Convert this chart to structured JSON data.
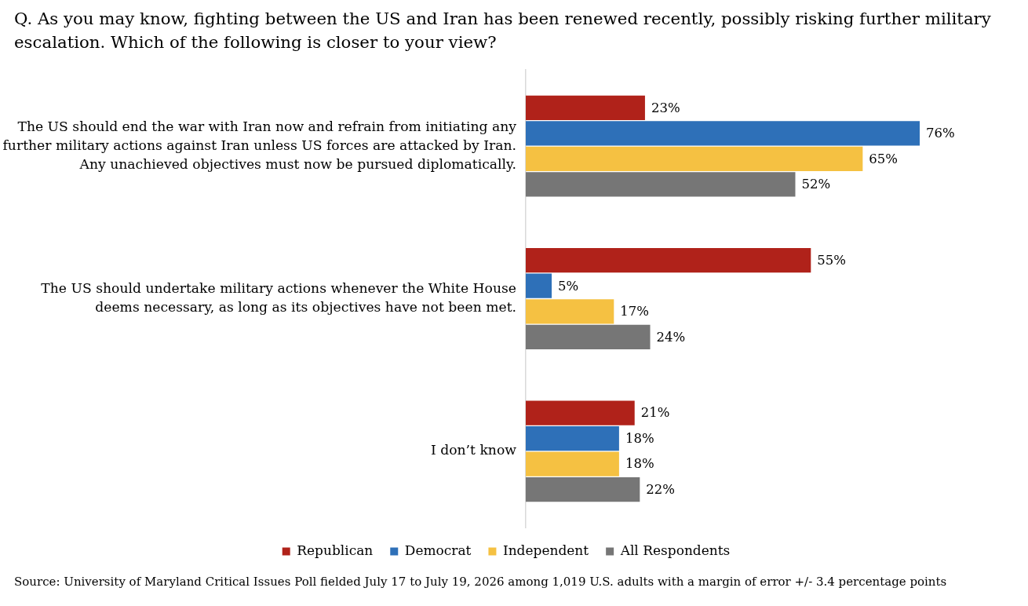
{
  "chart_data": {
    "type": "bar",
    "orientation": "horizontal",
    "title": "Q. As you may know, fighting between the US and Iran has been renewed recently, possibly risking further military escalation. Which of the following is closer to your view?",
    "categories": [
      "The US should end the war with Iran now and refrain from initiating any further military actions against Iran unless US forces are attacked by Iran. Any unachieved objectives must now be pursued diplomatically.",
      "The US should undertake military actions whenever the White House deems necessary, as long as its objectives have not been met.",
      "I don’t know"
    ],
    "series": [
      {
        "name": "Republican",
        "color": "#b0221a",
        "values": [
          23,
          55,
          21
        ],
        "value_labels": [
          "23%",
          "55%",
          "21%"
        ]
      },
      {
        "name": "Democrat",
        "color": "#2e70b8",
        "values": [
          76,
          5,
          18
        ],
        "value_labels": [
          "76%",
          "5%",
          "18%"
        ]
      },
      {
        "name": "Independent",
        "color": "#f5c142",
        "values": [
          65,
          17,
          18
        ],
        "value_labels": [
          "65%",
          "17%",
          "18%"
        ]
      },
      {
        "name": "All Respondents",
        "color": "#767676",
        "values": [
          52,
          24,
          22
        ],
        "value_labels": [
          "52%",
          "24%",
          "22%"
        ]
      }
    ],
    "legend": "bottom",
    "annotations": [
      "Source: University of Maryland Critical Issues Poll fielded July 17 to July 19, 2026 among 1,019 U.S. adults with a margin of error +/- 3.4 percentage points"
    ]
  }
}
